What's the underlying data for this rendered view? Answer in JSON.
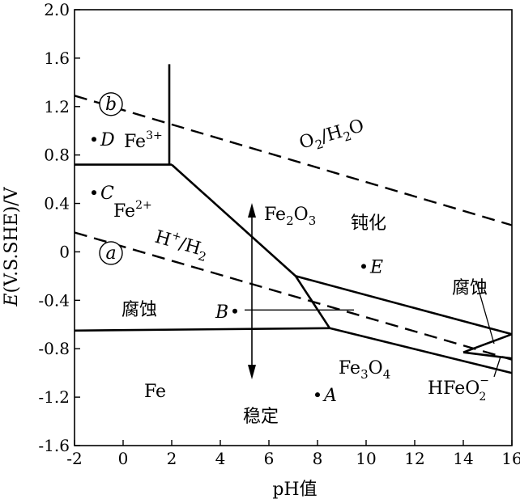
{
  "chart_data": {
    "type": "diagram",
    "xlabel": {
      "main": "pH",
      "suffix": "值"
    },
    "ylabel": {
      "var": "E",
      "rest": "(V.S.SHE)/V"
    },
    "xlim": [
      -2,
      16
    ],
    "ylim": [
      -1.6,
      2.0
    ],
    "x_ticks": [
      "-2",
      "0",
      "2",
      "4",
      "6",
      "8",
      "10",
      "12",
      "14",
      "16"
    ],
    "y_ticks": [
      "2.0",
      "1.6",
      "1.2",
      "0.8",
      "0.4",
      "0",
      "-0.4",
      "-0.8",
      "-1.2",
      "-1.6"
    ],
    "boundaries": [
      [
        [
          -2,
          0.72
        ],
        [
          1.9,
          0.72
        ],
        [
          2.0,
          0.72
        ]
      ],
      [
        [
          1.9,
          1.55
        ],
        [
          1.9,
          0.72
        ]
      ],
      [
        [
          2.0,
          0.72
        ],
        [
          7.1,
          -0.2
        ]
      ],
      [
        [
          7.1,
          -0.2
        ],
        [
          8.5,
          -0.63
        ]
      ],
      [
        [
          -2,
          -0.65
        ],
        [
          8.5,
          -0.63
        ]
      ],
      [
        [
          7.1,
          -0.2
        ],
        [
          16,
          -0.68
        ]
      ],
      [
        [
          8.5,
          -0.63
        ],
        [
          16,
          -1.0
        ]
      ],
      [
        [
          14.0,
          -0.83
        ],
        [
          16,
          -0.68
        ]
      ],
      [
        [
          14.0,
          -0.83
        ],
        [
          16,
          -0.88
        ]
      ]
    ],
    "dashed_lines": [
      {
        "label": "b",
        "points": [
          [
            -2,
            1.29
          ],
          [
            16,
            0.22
          ]
        ]
      },
      {
        "label": "a",
        "points": [
          [
            -2,
            0.16
          ],
          [
            16,
            -0.89
          ]
        ]
      }
    ],
    "points": [
      {
        "label": "A",
        "x": 8.0,
        "y": -1.18
      },
      {
        "label": "B",
        "x": 4.6,
        "y": -0.49
      },
      {
        "label": "C",
        "x": -1.2,
        "y": 0.49
      },
      {
        "label": "D",
        "x": -1.2,
        "y": 0.93
      },
      {
        "label": "E",
        "x": 9.9,
        "y": -0.12
      }
    ],
    "regions": {
      "fe3": {
        "base": "Fe",
        "sup": "3+"
      },
      "fe2": {
        "base": "Fe",
        "sup": "2+"
      },
      "fe2o3": {
        "a": "Fe",
        "sub": "2",
        "b": "O",
        "sub2": "3"
      },
      "fe3o4": {
        "a": "Fe",
        "sub": "3",
        "b": "O",
        "sub2": "4"
      },
      "fe": "Fe",
      "passivation": "钝化",
      "corrosion_left": "腐蚀",
      "corrosion_right": "腐蚀",
      "stable": "稳定",
      "hfeo2": {
        "base": "HFeO",
        "sub": "2",
        "sup": "−"
      },
      "o2h2o": {
        "a": "O",
        "sub": "2",
        "b": "/H",
        "sub2": "2",
        "c": "O"
      },
      "hh2": {
        "a": "H",
        "sup": "+",
        "b": "/H",
        "sub": "2"
      }
    },
    "grid": false
  }
}
